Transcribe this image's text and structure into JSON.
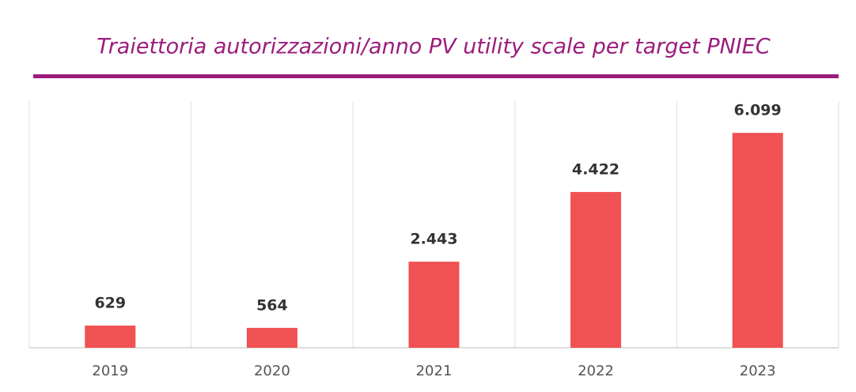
{
  "chart_data": {
    "type": "bar",
    "title": "Traiettoria autorizzazioni/anno PV utility scale per target PNIEC",
    "categories": [
      "2019",
      "2020",
      "2021",
      "2022",
      "2023"
    ],
    "values": [
      629,
      564,
      2443,
      4422,
      6099
    ],
    "value_labels": [
      "629",
      "564",
      "2.443",
      "4.422",
      "6.099"
    ],
    "color": "#f05152",
    "title_color": "#9b1c7c",
    "ylim": [
      0,
      7000
    ]
  }
}
